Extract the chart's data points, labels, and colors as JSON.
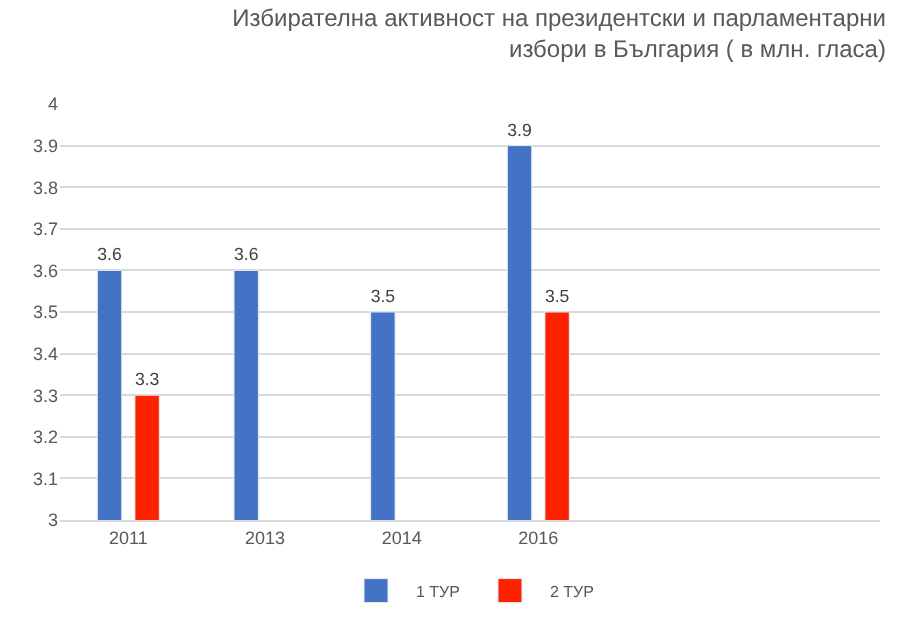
{
  "chart_data": {
    "type": "bar",
    "title": "Избирателна активност на президентски и парламентарни\nизбори в България ( в млн. гласа)",
    "categories": [
      "2011",
      "2013",
      "2014",
      "2016",
      null,
      null
    ],
    "series": [
      {
        "name": "1 ТУР",
        "color": "#4472c4",
        "values": [
          3.6,
          3.6,
          3.5,
          3.9,
          null,
          null
        ]
      },
      {
        "name": "2 ТУР",
        "color": "#ff2200",
        "values": [
          3.3,
          null,
          null,
          3.5,
          null,
          null
        ]
      }
    ],
    "ylim": [
      3,
      4
    ],
    "yticks": [
      3,
      3.1,
      3.2,
      3.3,
      3.4,
      3.5,
      3.6,
      3.7,
      3.8,
      3.9,
      4
    ],
    "grid": "y",
    "legend": "bottom",
    "data_labels": true
  }
}
